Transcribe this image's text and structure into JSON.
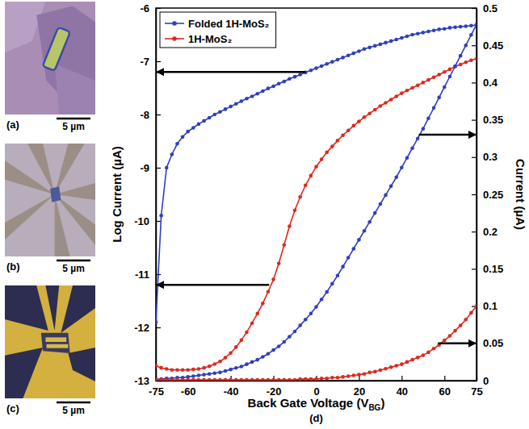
{
  "chart_data": {
    "type": "line",
    "panel_label": "(d)",
    "xlabel": "Back Gate Voltage (VBG)",
    "ylabel": "Log Current (µA)",
    "y2label": "Current (µA)",
    "xlim": [
      -75,
      75
    ],
    "xticks": [
      -75,
      -60,
      -40,
      -20,
      0,
      20,
      40,
      60,
      75
    ],
    "ylim": [
      -13,
      -6
    ],
    "yticks": [
      -13,
      -12,
      -11,
      -10,
      -9,
      -8,
      -7,
      -6
    ],
    "y2lim": [
      0,
      0.5
    ],
    "y2ticks": [
      0,
      0.05,
      0.1,
      0.15,
      0.2,
      0.25,
      0.3,
      0.35,
      0.4,
      0.45,
      0.5
    ],
    "grid": false,
    "legend": "upper left",
    "x": [
      -75,
      -72.5,
      -70,
      -67.5,
      -65,
      -62.5,
      -60,
      -57.5,
      -55,
      -52.5,
      -50,
      -47.5,
      -45,
      -42.5,
      -40,
      -37.5,
      -35,
      -32.5,
      -30,
      -27.5,
      -25,
      -22.5,
      -20,
      -17.5,
      -15,
      -12.5,
      -10,
      -7.5,
      -5,
      -2.5,
      0,
      2.5,
      5,
      7.5,
      10,
      12.5,
      15,
      17.5,
      20,
      22.5,
      25,
      27.5,
      30,
      32.5,
      35,
      37.5,
      40,
      42.5,
      45,
      47.5,
      50,
      52.5,
      55,
      57.5,
      60,
      62.5,
      65,
      67.5,
      70,
      72.5,
      75
    ],
    "series": [
      {
        "name": "Folded 1H-MoS₂",
        "color": "#2f3fbf",
        "marker": "circle",
        "line_style": "solid",
        "axis": "y",
        "values": [
          -11.9,
          -9.9,
          -9.0,
          -8.75,
          -8.55,
          -8.42,
          -8.32,
          -8.25,
          -8.18,
          -8.12,
          -8.06,
          -8.0,
          -7.95,
          -7.9,
          -7.85,
          -7.8,
          -7.75,
          -7.7,
          -7.66,
          -7.61,
          -7.56,
          -7.51,
          -7.47,
          -7.42,
          -7.38,
          -7.33,
          -7.29,
          -7.25,
          -7.21,
          -7.17,
          -7.13,
          -7.09,
          -7.05,
          -7.01,
          -6.97,
          -6.93,
          -6.89,
          -6.85,
          -6.81,
          -6.77,
          -6.74,
          -6.71,
          -6.68,
          -6.65,
          -6.62,
          -6.59,
          -6.56,
          -6.53,
          -6.5,
          -6.48,
          -6.46,
          -6.44,
          -6.42,
          -6.4,
          -6.39,
          -6.37,
          -6.36,
          -6.35,
          -6.34,
          -6.33,
          -6.32
        ]
      },
      {
        "name": "1H-MoS₂",
        "color": "#e0281e",
        "marker": "circle",
        "line_style": "solid",
        "axis": "y",
        "values": [
          -12.72,
          -12.76,
          -12.78,
          -12.8,
          -12.8,
          -12.8,
          -12.8,
          -12.79,
          -12.78,
          -12.76,
          -12.73,
          -12.69,
          -12.64,
          -12.57,
          -12.48,
          -12.37,
          -12.24,
          -12.09,
          -11.92,
          -11.74,
          -11.55,
          -11.33,
          -11.1,
          -10.8,
          -10.45,
          -10.1,
          -9.8,
          -9.55,
          -9.33,
          -9.15,
          -8.98,
          -8.84,
          -8.71,
          -8.6,
          -8.49,
          -8.39,
          -8.3,
          -8.21,
          -8.13,
          -8.05,
          -7.98,
          -7.91,
          -7.84,
          -7.78,
          -7.72,
          -7.66,
          -7.6,
          -7.55,
          -7.5,
          -7.45,
          -7.4,
          -7.35,
          -7.3,
          -7.25,
          -7.2,
          -7.15,
          -7.1,
          -7.06,
          -7.02,
          -6.98,
          -6.95
        ]
      },
      {
        "name": "Folded 1H-MoS₂",
        "color": "#2f3fbf",
        "marker": "circle",
        "line_style": "solid",
        "axis": "y2",
        "values": [
          0.002,
          0.002,
          0.003,
          0.003,
          0.004,
          0.004,
          0.005,
          0.006,
          0.007,
          0.008,
          0.009,
          0.01,
          0.011,
          0.013,
          0.015,
          0.017,
          0.019,
          0.022,
          0.025,
          0.028,
          0.032,
          0.036,
          0.041,
          0.046,
          0.052,
          0.059,
          0.066,
          0.074,
          0.082,
          0.09,
          0.099,
          0.109,
          0.119,
          0.13,
          0.141,
          0.153,
          0.165,
          0.177,
          0.189,
          0.201,
          0.213,
          0.225,
          0.237,
          0.249,
          0.261,
          0.273,
          0.286,
          0.299,
          0.312,
          0.325,
          0.338,
          0.352,
          0.366,
          0.38,
          0.394,
          0.408,
          0.422,
          0.436,
          0.45,
          0.464,
          0.478
        ]
      },
      {
        "name": "1H-MoS₂",
        "color": "#e0281e",
        "marker": "circle",
        "line_style": "solid",
        "axis": "y2",
        "values": [
          0.001,
          0.001,
          0.001,
          0.001,
          0.001,
          0.001,
          0.001,
          0.001,
          0.001,
          0.001,
          0.001,
          0.001,
          0.001,
          0.001,
          0.001,
          0.001,
          0.001,
          0.001,
          0.001,
          0.001,
          0.001,
          0.001,
          0.001,
          0.001,
          0.001,
          0.001,
          0.001,
          0.002,
          0.002,
          0.002,
          0.002,
          0.003,
          0.003,
          0.004,
          0.004,
          0.005,
          0.006,
          0.007,
          0.008,
          0.009,
          0.011,
          0.012,
          0.014,
          0.016,
          0.018,
          0.02,
          0.022,
          0.025,
          0.028,
          0.031,
          0.034,
          0.038,
          0.043,
          0.048,
          0.054,
          0.06,
          0.067,
          0.074,
          0.082,
          0.091,
          0.1
        ]
      }
    ],
    "annotations": [
      {
        "series": 0,
        "arrow_from_x": -5,
        "arrow_y": -7.2
      },
      {
        "series": 1,
        "arrow_from_x": -22,
        "arrow_y": -11.2
      },
      {
        "series": 2,
        "arrow_from_x": 48,
        "arrow_y": 0.33
      },
      {
        "series": 3,
        "arrow_from_x": 57,
        "arrow_y": 0.05
      }
    ]
  },
  "images": [
    {
      "label": "(a)",
      "scale_bar": "5 µm"
    },
    {
      "label": "(b)",
      "scale_bar": "5 µm"
    },
    {
      "label": "(c)",
      "scale_bar": "5 µm"
    }
  ]
}
